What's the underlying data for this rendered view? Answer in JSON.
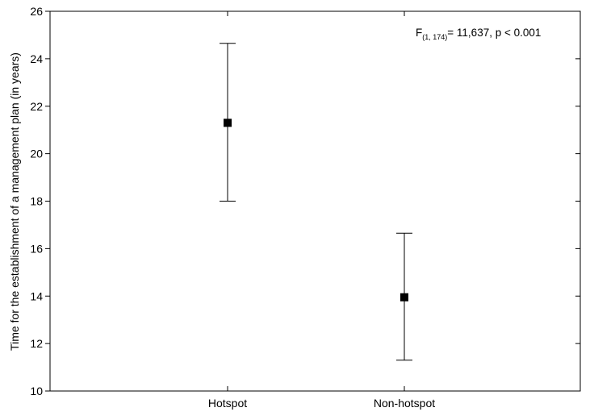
{
  "chart_data": {
    "type": "scatter",
    "title": "",
    "xlabel": "",
    "ylabel": "Time for the establishment of a management plan (in years)",
    "ylim": [
      10,
      26
    ],
    "yticks": [
      10,
      12,
      14,
      16,
      18,
      20,
      22,
      24,
      26
    ],
    "categories": [
      "Hotspot",
      "Non-hotspot"
    ],
    "series": [
      {
        "points": [
          {
            "category": "Hotspot",
            "mean": 21.3,
            "lower": 18.0,
            "upper": 24.65
          },
          {
            "category": "Non-hotspot",
            "mean": 13.95,
            "lower": 11.3,
            "upper": 16.65
          }
        ]
      }
    ],
    "annotation": {
      "main": "F",
      "subscript": "(1, 174)",
      "rest": "= 11,637, p < 0.001"
    },
    "grid": false,
    "marker": "square",
    "colors": {
      "marker": "#000000",
      "axes": "#000000",
      "background": "#ffffff"
    }
  }
}
